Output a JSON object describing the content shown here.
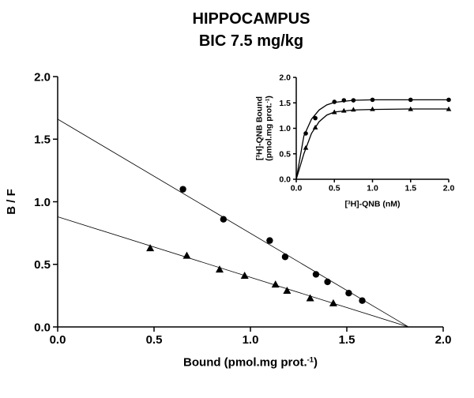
{
  "title": [
    "HIPPOCAMPUS",
    "BIC 7.5 mg/kg"
  ],
  "chart_data": [
    {
      "type": "scatter",
      "xlabel": [
        "Bound (pmol.mg prot.",
        "-1",
        ")"
      ],
      "ylabel": [
        [
          "B / F"
        ]
      ],
      "xlim": [
        0,
        2.0
      ],
      "ylim": [
        0,
        2.0
      ],
      "xticks": [
        {
          "value": 0,
          "label": "0.0"
        },
        0.5,
        {
          "value": 1,
          "label": "1.0"
        },
        1.5,
        {
          "value": 2,
          "label": "2.0"
        }
      ],
      "yticks": [
        {
          "value": 0,
          "label": "0.0"
        },
        0.5,
        {
          "value": 1,
          "label": "1.0"
        },
        1.5,
        {
          "value": 2,
          "label": "2.0"
        }
      ],
      "series": [
        {
          "marker": "circle",
          "color": "#000000",
          "x": [
            0.65,
            0.86,
            1.1,
            1.18,
            1.34,
            1.4,
            1.51,
            1.58
          ],
          "values": [
            1.1,
            0.86,
            0.69,
            0.56,
            0.42,
            0.36,
            0.27,
            0.21
          ]
        },
        {
          "marker": "triangle",
          "color": "#000000",
          "x": [
            0.48,
            0.67,
            0.84,
            0.97,
            1.13,
            1.19,
            1.31,
            1.43
          ],
          "values": [
            0.63,
            0.57,
            0.46,
            0.41,
            0.34,
            0.29,
            0.23,
            0.19
          ]
        }
      ],
      "fit_lines": [
        {
          "x": [
            0,
            1.82
          ],
          "values": [
            1.66,
            0
          ]
        },
        {
          "x": [
            0,
            1.82
          ],
          "values": [
            0.88,
            0
          ]
        }
      ]
    },
    {
      "type": "scatter",
      "xlabel": [
        "[",
        "3",
        "H]-QNB (nM)"
      ],
      "ylabel": [
        [
          "[",
          "3",
          "H]-QNB Bound"
        ],
        [
          "(pmol.mg prot.",
          "-1",
          ")"
        ]
      ],
      "xlim": [
        0,
        2.0
      ],
      "ylim": [
        0,
        2.0
      ],
      "xticks": [
        {
          "value": 0,
          "label": "0.0"
        },
        0.5,
        {
          "value": 1,
          "label": "1.0"
        },
        1.5,
        {
          "value": 2,
          "label": "2.0"
        }
      ],
      "yticks": [
        {
          "value": 0,
          "label": "0.0"
        },
        0.5,
        {
          "value": 1,
          "label": "1.0"
        },
        1.5,
        {
          "value": 2,
          "label": "2.0"
        }
      ],
      "series": [
        {
          "marker": "circle",
          "color": "#000000",
          "x": [
            0.125,
            0.25,
            0.5,
            0.625,
            0.75,
            1,
            1.5,
            2
          ],
          "values": [
            0.9,
            1.2,
            1.52,
            1.55,
            1.55,
            1.56,
            1.56,
            1.56
          ]
        },
        {
          "marker": "triangle",
          "color": "#000000",
          "x": [
            0.125,
            0.25,
            0.5,
            0.625,
            0.75,
            1,
            1.5,
            2
          ],
          "values": [
            0.62,
            1.02,
            1.32,
            1.35,
            1.37,
            1.38,
            1.38,
            1.38
          ]
        }
      ],
      "fit_lines": [
        {
          "x": [
            0,
            0.1,
            0.2,
            0.3,
            0.4,
            0.5,
            0.75,
            1,
            1.5,
            2
          ],
          "values": [
            0,
            0.85,
            1.18,
            1.36,
            1.46,
            1.51,
            1.55,
            1.56,
            1.56,
            1.56
          ]
        },
        {
          "x": [
            0,
            0.1,
            0.2,
            0.3,
            0.4,
            0.5,
            0.75,
            1,
            1.5,
            2
          ],
          "values": [
            0,
            0.5,
            0.9,
            1.13,
            1.26,
            1.32,
            1.36,
            1.37,
            1.38,
            1.38
          ]
        }
      ]
    }
  ]
}
